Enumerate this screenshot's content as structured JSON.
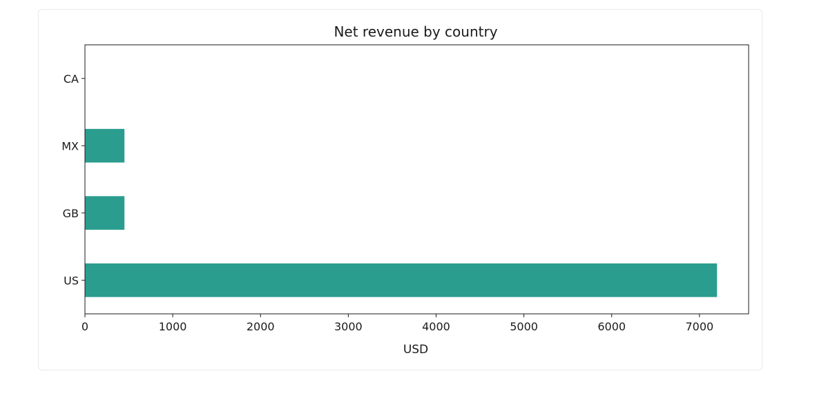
{
  "chart_data": {
    "type": "bar",
    "orientation": "horizontal",
    "title": "Net revenue by country",
    "xlabel": "USD",
    "ylabel": "",
    "categories": [
      "US",
      "GB",
      "MX",
      "CA"
    ],
    "values": [
      7200,
      450,
      450,
      0
    ],
    "xlim": [
      0,
      7560
    ],
    "xticks": [
      0,
      1000,
      2000,
      3000,
      4000,
      5000,
      6000,
      7000
    ],
    "xtick_labels": [
      "0",
      "1000",
      "2000",
      "3000",
      "4000",
      "5000",
      "6000",
      "7000"
    ],
    "bar_color": "#2a9d8f",
    "grid": false,
    "legend": "none"
  }
}
